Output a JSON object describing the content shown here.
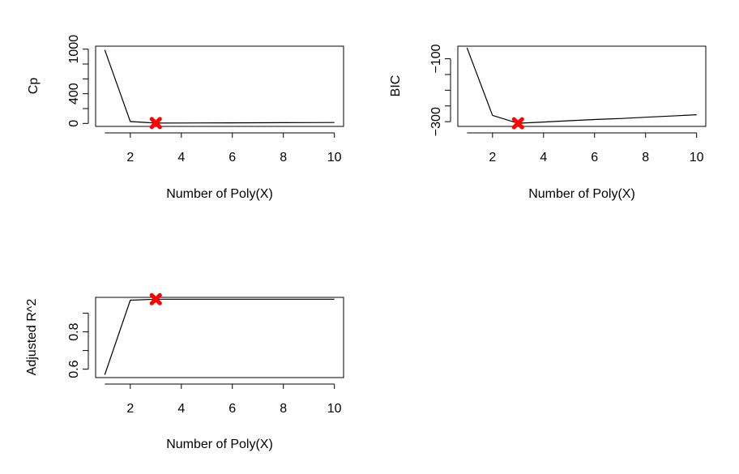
{
  "chart_data": [
    {
      "type": "line",
      "title": "",
      "xlabel": "Number of Poly(X)",
      "ylabel": "Cp",
      "xlim": [
        0.64,
        10.36
      ],
      "ylim": [
        -40,
        1040
      ],
      "x": [
        1,
        2,
        3,
        4,
        5,
        6,
        7,
        8,
        9,
        10
      ],
      "y": [
        990,
        25,
        5,
        6,
        7,
        8,
        9,
        10,
        11,
        12
      ],
      "x_ticks": [
        2,
        4,
        6,
        8,
        10
      ],
      "y_ticks": [
        0,
        400,
        1000
      ],
      "y_minor_ticks": [
        200,
        600,
        800
      ],
      "highlight": {
        "x": 3,
        "y": 5,
        "color": "#ff0000"
      },
      "line_color": "#000000"
    },
    {
      "type": "line",
      "title": "",
      "xlabel": "Number of Poly(X)",
      "ylabel": "BIC",
      "xlim": [
        0.64,
        10.36
      ],
      "ylim": [
        -315,
        -60
      ],
      "x": [
        1,
        2,
        3,
        4,
        5,
        6,
        7,
        8,
        9,
        10
      ],
      "y": [
        -65,
        -280,
        -305,
        -301,
        -297,
        -293,
        -290,
        -286,
        -282,
        -278
      ],
      "x_ticks": [
        2,
        4,
        6,
        8,
        10
      ],
      "y_ticks": [
        -100,
        -300
      ],
      "y_minor_ticks": [
        -150,
        -200,
        -250
      ],
      "highlight": {
        "x": 3,
        "y": -305,
        "color": "#ff0000"
      },
      "line_color": "#000000"
    },
    {
      "type": "line",
      "title": "",
      "xlabel": "Number of Poly(X)",
      "ylabel": "Adjusted R^2",
      "xlim": [
        0.64,
        10.36
      ],
      "ylim": [
        0.555,
        0.985
      ],
      "x": [
        1,
        2,
        3,
        4,
        5,
        6,
        7,
        8,
        9,
        10
      ],
      "y": [
        0.57,
        0.97,
        0.975,
        0.975,
        0.975,
        0.975,
        0.975,
        0.975,
        0.975,
        0.975
      ],
      "x_ticks": [
        2,
        4,
        6,
        8,
        10
      ],
      "y_ticks": [
        0.6,
        0.8
      ],
      "y_minor_ticks": [
        0.7,
        0.9
      ],
      "highlight": {
        "x": 3,
        "y": 0.975,
        "color": "#ff0000"
      },
      "line_color": "#000000"
    }
  ]
}
